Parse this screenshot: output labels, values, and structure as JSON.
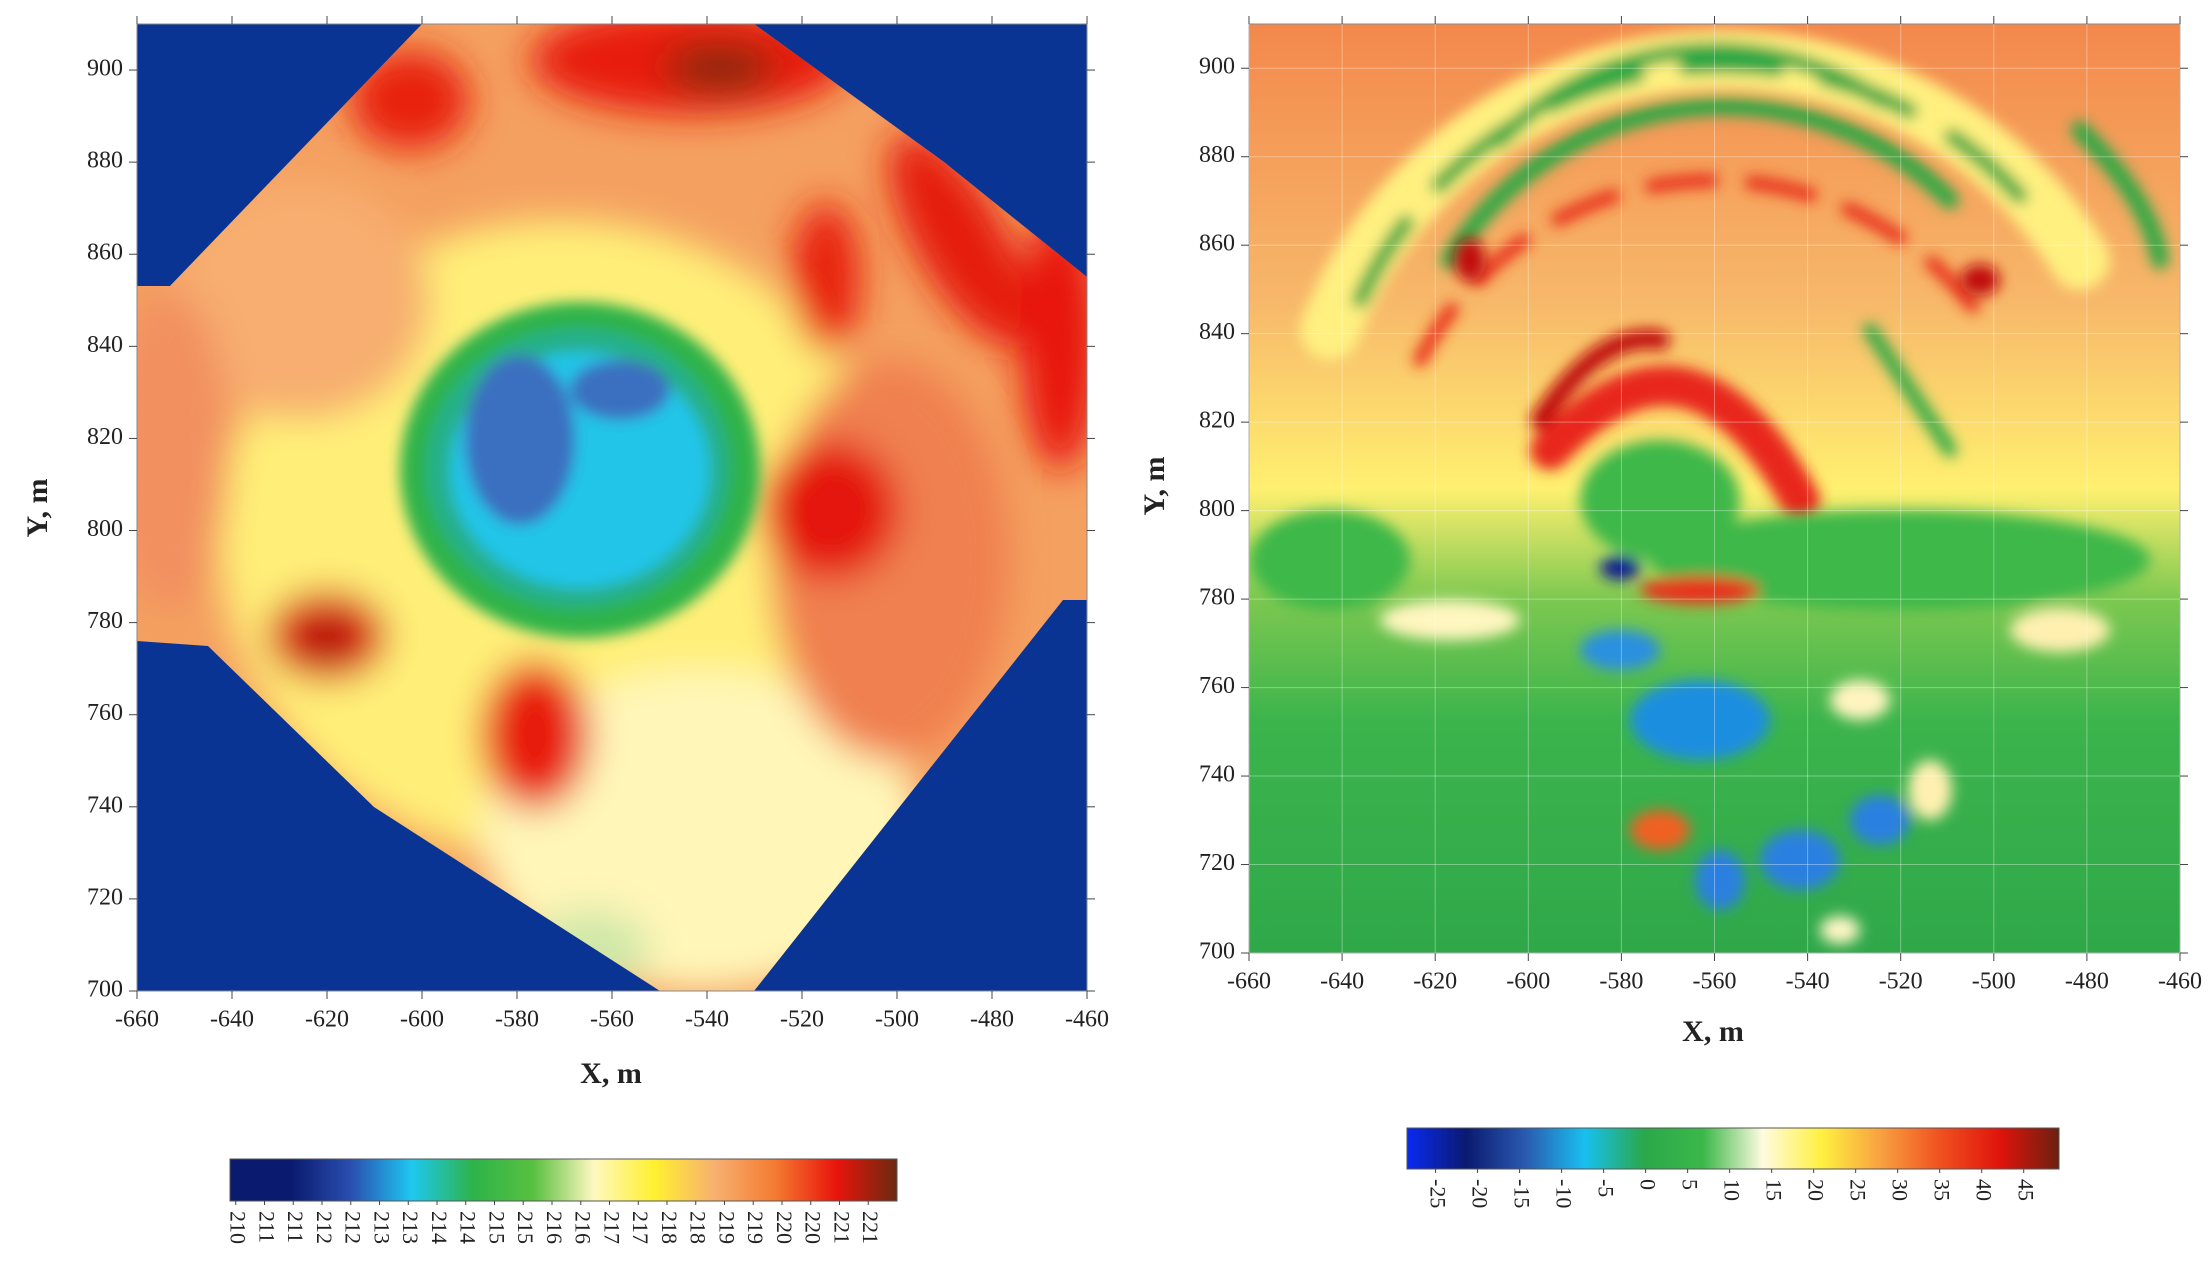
{
  "chart_data": [
    {
      "type": "heatmap",
      "xlabel": "X, m",
      "ylabel": "Y, m",
      "xlim": [
        -660,
        -460
      ],
      "xticks": [
        -660,
        -640,
        -620,
        -600,
        -580,
        -560,
        -540,
        -520,
        -500,
        -480,
        -460
      ],
      "ylim": [
        700,
        910
      ],
      "yticks": [
        700,
        720,
        740,
        760,
        780,
        800,
        820,
        840,
        860,
        880,
        900
      ],
      "grid": false,
      "clim": [
        209.9,
        221.5
      ],
      "colormap": [
        "#0a1a6e",
        "#0a1a6e",
        "#2a4fb0",
        "#1ec8f0",
        "#2db34a",
        "#58c040",
        "#fff8c0",
        "#fff030",
        "#f7b070",
        "#f47a30",
        "#e8140c",
        "#6b2a10"
      ],
      "cticks": [
        210,
        {
          "value": 210.5,
          "label": "211"
        },
        211,
        {
          "value": 211.5,
          "label": "212"
        },
        212,
        {
          "value": 212.5,
          "label": "213"
        },
        213,
        {
          "value": 213.5,
          "label": "214"
        },
        214,
        {
          "value": 214.5,
          "label": "215"
        },
        215,
        {
          "value": 215.5,
          "label": "216"
        },
        216,
        {
          "value": 216.5,
          "label": "217"
        },
        217,
        {
          "value": 217.5,
          "label": "218"
        },
        218,
        {
          "value": 218.5,
          "label": "219"
        },
        219,
        {
          "value": 219.5,
          "label": "220"
        },
        220,
        {
          "value": 220.5,
          "label": "221"
        },
        221
      ]
    },
    {
      "type": "heatmap",
      "xlabel": "X, m",
      "ylabel": "Y, m",
      "xlim": [
        -660,
        -460
      ],
      "xticks": [
        -660,
        -640,
        -620,
        -600,
        -580,
        -560,
        -540,
        -520,
        -500,
        -480,
        -460
      ],
      "ylim": [
        700,
        910
      ],
      "yticks": [
        700,
        720,
        740,
        760,
        780,
        800,
        820,
        840,
        860,
        880,
        900
      ],
      "grid": true,
      "clim": [
        -28.4,
        49.2
      ],
      "colormap": [
        "#0a2af0",
        "#0a1a70",
        "#2a5ab0",
        "#18c0f0",
        "#2aa84a",
        "#3cb84a",
        "#fffbe0",
        "#fff040",
        "#f8a040",
        "#f05020",
        "#e0140c",
        "#6b2010"
      ],
      "cticks": [
        -25,
        -20,
        -15,
        -10,
        -5,
        0,
        5,
        10,
        15,
        20,
        25,
        30,
        35,
        40,
        45
      ]
    }
  ]
}
